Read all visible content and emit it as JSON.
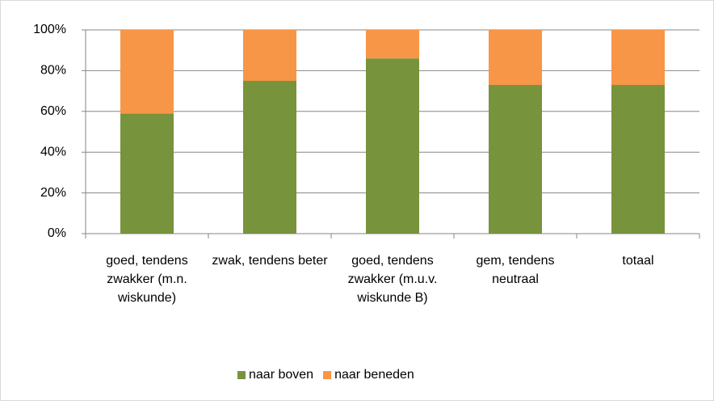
{
  "chart_data": {
    "type": "bar",
    "stacked": true,
    "categories": [
      "goed, tendens zwakker (m.n. wiskunde)",
      "zwak, tendens beter",
      "goed, tendens zwakker (m.u.v. wiskunde B)",
      "gem, tendens neutraal",
      "totaal"
    ],
    "series": [
      {
        "name": "naar boven",
        "color": "#77933c",
        "values": [
          59,
          75,
          86,
          73,
          73
        ]
      },
      {
        "name": "naar beneden",
        "color": "#f79646",
        "values": [
          41,
          25,
          14,
          27,
          27
        ]
      }
    ],
    "ylim": [
      0,
      100
    ],
    "yticks": [
      {
        "value": 0,
        "label": "0%"
      },
      {
        "value": 20,
        "label": "20%"
      },
      {
        "value": 40,
        "label": "40%"
      },
      {
        "value": 60,
        "label": "60%"
      },
      {
        "value": 80,
        "label": "80%"
      },
      {
        "value": 100,
        "label": "100%"
      }
    ],
    "grid": true,
    "legend": "bottom"
  }
}
